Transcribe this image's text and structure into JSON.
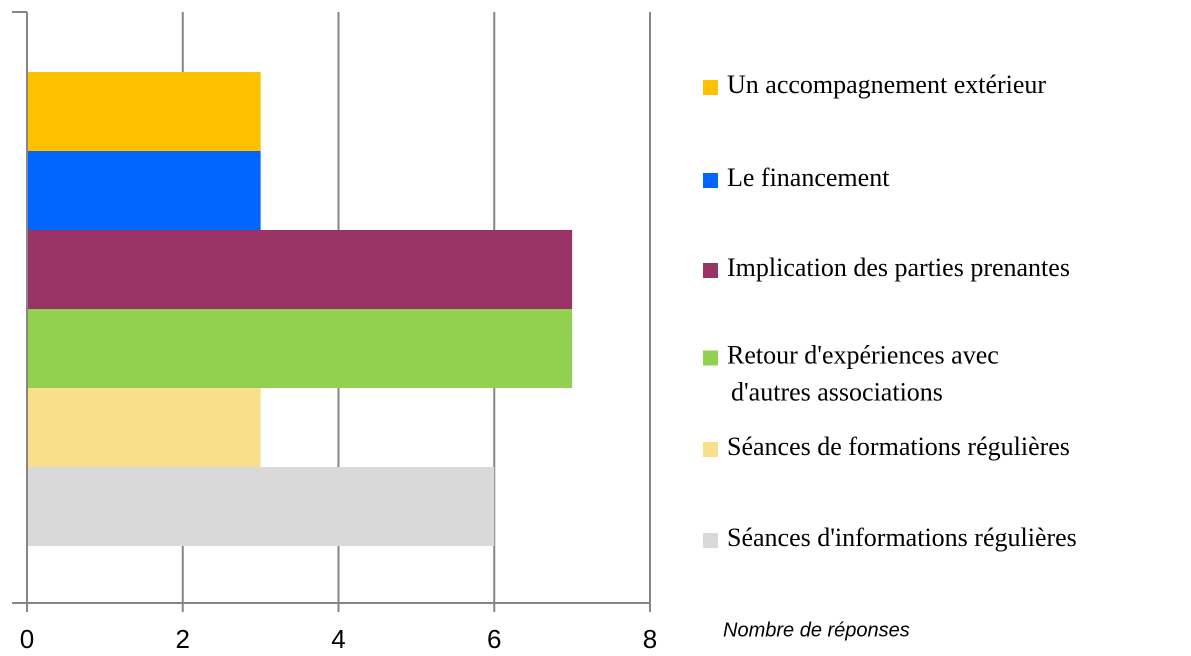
{
  "chart_data": {
    "type": "bar",
    "orientation": "horizontal",
    "x_label": "Nombre de réponses",
    "categories": [
      null
    ],
    "series": [
      {
        "name": "Un accompagnement extérieur",
        "color": "#ffc000",
        "values": [
          3
        ]
      },
      {
        "name": "Le financement",
        "color": "#0066ff",
        "values": [
          3
        ]
      },
      {
        "name": "Implication des parties prenantes",
        "color": "#993366",
        "values": [
          7
        ]
      },
      {
        "name": "Retour d'expériences avec\nd'autres associations",
        "color": "#92d050",
        "values": [
          7
        ]
      },
      {
        "name": "Séances de formations régulières",
        "color": "#f8e08a",
        "values": [
          3
        ]
      },
      {
        "name": "Séances d'informations régulières",
        "color": "#d9d9d9",
        "values": [
          6
        ]
      }
    ],
    "xlim": [
      0,
      8
    ],
    "xticks": [
      0,
      2,
      4,
      6,
      8
    ],
    "grid": true,
    "legend": "right"
  }
}
